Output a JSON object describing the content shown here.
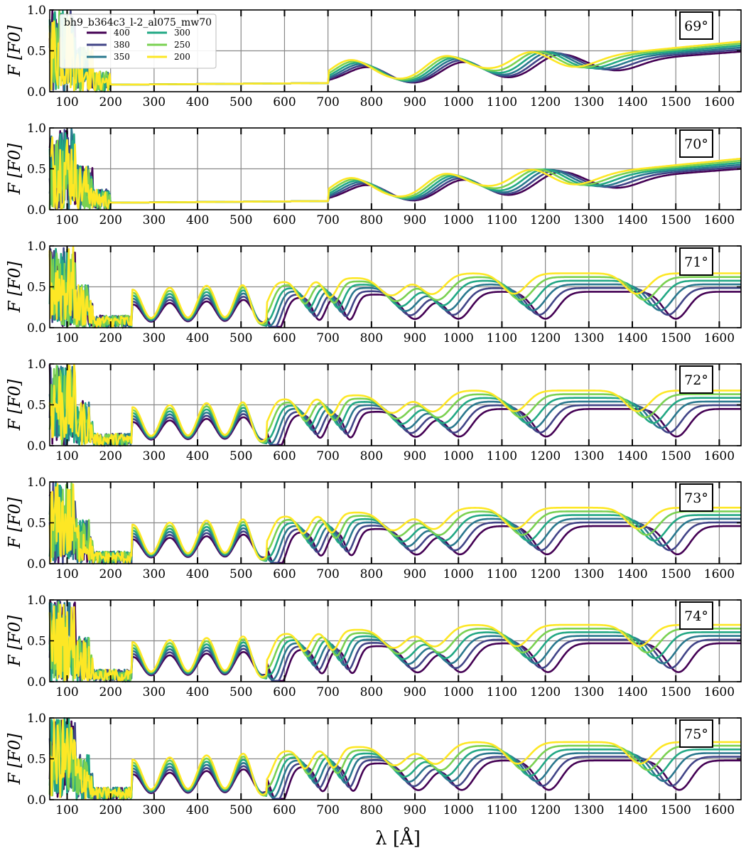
{
  "figure": {
    "xlabel": "λ [Å]",
    "ylabel": "F [F0]"
  },
  "legend": {
    "title": "bh9_b364c3_l-2_al075_mw70",
    "entries": [
      {
        "label": "400",
        "color": "#440154"
      },
      {
        "label": "380",
        "color": "#414487"
      },
      {
        "label": "350",
        "color": "#2a788e"
      },
      {
        "label": "300",
        "color": "#22a884"
      },
      {
        "label": "250",
        "color": "#7ad151"
      },
      {
        "label": "200",
        "color": "#fde725"
      }
    ]
  },
  "chart_data": [
    {
      "type": "line",
      "panel_label": "69°",
      "xlim": [
        60,
        1650
      ],
      "ylim": [
        0.0,
        1.0
      ],
      "x_ticks": [
        100,
        200,
        300,
        400,
        500,
        600,
        700,
        800,
        900,
        1000,
        1100,
        1200,
        1300,
        1400,
        1500,
        1600
      ],
      "y_ticks": [
        "0.0",
        "0.5",
        "1.0"
      ],
      "grid": true
    },
    {
      "type": "line",
      "panel_label": "70°",
      "xlim": [
        60,
        1650
      ],
      "ylim": [
        0.0,
        1.0
      ],
      "x_ticks": [
        100,
        200,
        300,
        400,
        500,
        600,
        700,
        800,
        900,
        1000,
        1100,
        1200,
        1300,
        1400,
        1500,
        1600
      ],
      "y_ticks": [
        "0.0",
        "0.5",
        "1.0"
      ],
      "grid": true
    },
    {
      "type": "line",
      "panel_label": "71°",
      "xlim": [
        60,
        1650
      ],
      "ylim": [
        0.0,
        1.0
      ],
      "x_ticks": [
        100,
        200,
        300,
        400,
        500,
        600,
        700,
        800,
        900,
        1000,
        1100,
        1200,
        1300,
        1400,
        1500,
        1600
      ],
      "y_ticks": [
        "0.0",
        "0.5",
        "1.0"
      ],
      "grid": true
    },
    {
      "type": "line",
      "panel_label": "72°",
      "xlim": [
        60,
        1650
      ],
      "ylim": [
        0.0,
        1.0
      ],
      "x_ticks": [
        100,
        200,
        300,
        400,
        500,
        600,
        700,
        800,
        900,
        1000,
        1100,
        1200,
        1300,
        1400,
        1500,
        1600
      ],
      "y_ticks": [
        "0.0",
        "0.5",
        "1.0"
      ],
      "grid": true
    },
    {
      "type": "line",
      "panel_label": "73°",
      "xlim": [
        60,
        1650
      ],
      "ylim": [
        0.0,
        1.0
      ],
      "x_ticks": [
        100,
        200,
        300,
        400,
        500,
        600,
        700,
        800,
        900,
        1000,
        1100,
        1200,
        1300,
        1400,
        1500,
        1600
      ],
      "y_ticks": [
        "0.0",
        "0.5",
        "1.0"
      ],
      "grid": true
    },
    {
      "type": "line",
      "panel_label": "74°",
      "xlim": [
        60,
        1650
      ],
      "ylim": [
        0.0,
        1.0
      ],
      "x_ticks": [
        100,
        200,
        300,
        400,
        500,
        600,
        700,
        800,
        900,
        1000,
        1100,
        1200,
        1300,
        1400,
        1500,
        1600
      ],
      "y_ticks": [
        "0.0",
        "0.5",
        "1.0"
      ],
      "grid": true
    },
    {
      "type": "line",
      "panel_label": "75°",
      "xlim": [
        60,
        1650
      ],
      "ylim": [
        0.0,
        1.0
      ],
      "x_ticks": [
        100,
        200,
        300,
        400,
        500,
        600,
        700,
        800,
        900,
        1000,
        1100,
        1200,
        1300,
        1400,
        1500,
        1600
      ],
      "y_ticks": [
        "0.0",
        "0.5",
        "1.0"
      ],
      "grid": true
    }
  ]
}
